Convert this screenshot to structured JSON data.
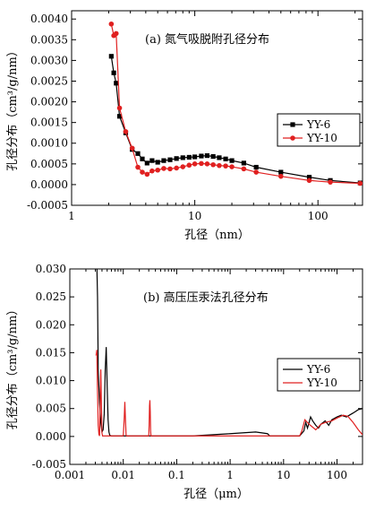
{
  "colors": {
    "yy6": "#000000",
    "yy10": "#e02020",
    "axis": "#000000"
  },
  "chart_data": [
    {
      "type": "line",
      "title": "(a) 氮气吸脱附孔径分布",
      "xlabel": "孔径（nm）",
      "ylabel": "孔径分布（cm³/g/nm）",
      "xscale": "log",
      "xlim": [
        1,
        230
      ],
      "ylim": [
        -0.0005,
        0.0042
      ],
      "xticks": [
        1,
        10,
        100
      ],
      "xtick_labels": [
        "1",
        "10",
        "100"
      ],
      "yticks": [
        -0.0005,
        0,
        0.0005,
        0.001,
        0.0015,
        0.002,
        0.0025,
        0.003,
        0.0035,
        0.004
      ],
      "ytick_labels": [
        "-0.0005",
        "0.0000",
        "0.0005",
        "0.0010",
        "0.0015",
        "0.0020",
        "0.0025",
        "0.0030",
        "0.0035",
        "0.0040"
      ],
      "legend_position": "right",
      "series": [
        {
          "name": "YY-6",
          "marker": "square",
          "color": "#000000",
          "x": [
            2.1,
            2.2,
            2.3,
            2.45,
            2.75,
            3.1,
            3.45,
            3.75,
            4.1,
            4.5,
            5.0,
            5.6,
            6.3,
            7.1,
            8.0,
            9.0,
            10.0,
            11.3,
            12.6,
            14.1,
            15.8,
            17.8,
            20.0,
            25.0,
            31.5,
            50.0,
            85.0,
            126.0,
            220.0
          ],
          "y": [
            0.0031,
            0.0027,
            0.00245,
            0.00165,
            0.00125,
            0.00085,
            0.00075,
            0.00062,
            0.00052,
            0.00058,
            0.00054,
            0.00058,
            0.0006,
            0.00063,
            0.00065,
            0.00066,
            0.00067,
            0.00069,
            0.0007,
            0.00068,
            0.00065,
            0.00062,
            0.00058,
            0.00052,
            0.00042,
            0.0003,
            0.00018,
            0.0001,
            4e-05
          ]
        },
        {
          "name": "YY-10",
          "marker": "circle",
          "color": "#e02020",
          "x": [
            2.1,
            2.2,
            2.3,
            2.45,
            2.75,
            3.1,
            3.45,
            3.75,
            4.1,
            4.5,
            5.0,
            5.6,
            6.3,
            7.1,
            8.0,
            9.0,
            10.0,
            11.3,
            12.6,
            14.1,
            15.8,
            17.8,
            20.0,
            25.0,
            31.5,
            50.0,
            85.0,
            126.0,
            220.0
          ],
          "y": [
            0.00388,
            0.0036,
            0.00365,
            0.00185,
            0.00128,
            0.00088,
            0.00042,
            0.0003,
            0.00025,
            0.00033,
            0.00035,
            0.00039,
            0.00038,
            0.0004,
            0.00043,
            0.00047,
            0.0005,
            0.00051,
            0.0005,
            0.00048,
            0.00046,
            0.00045,
            0.00043,
            0.00038,
            0.0003,
            0.0002,
            0.0001,
            6e-05,
            3e-05
          ]
        }
      ]
    },
    {
      "type": "line",
      "title": "(b) 高压压汞法孔径分布",
      "xlabel": "孔径（μm）",
      "ylabel": "孔径分布（cm³/g/nm）",
      "xscale": "log",
      "xlim": [
        0.001,
        300
      ],
      "ylim": [
        -0.005,
        0.03
      ],
      "xticks": [
        0.001,
        0.01,
        0.1,
        1,
        10,
        100
      ],
      "xtick_labels": [
        "0.001",
        "0.01",
        "0.1",
        "1",
        "10",
        "100"
      ],
      "yticks": [
        -0.005,
        0,
        0.005,
        0.01,
        0.015,
        0.02,
        0.025,
        0.03
      ],
      "ytick_labels": [
        "-0.005",
        "0.000",
        "0.005",
        "0.010",
        "0.015",
        "0.020",
        "0.025",
        "0.030"
      ],
      "legend_position": "right",
      "series": [
        {
          "name": "YY-6",
          "color": "#000000",
          "x": [
            0.0032,
            0.0033,
            0.0034,
            0.0036,
            0.0038,
            0.004,
            0.0042,
            0.0044,
            0.0046,
            0.0048,
            0.005,
            0.0052,
            0.0054,
            0.0056,
            0.006,
            0.05,
            0.2,
            1.0,
            3.0,
            5.0,
            5.5,
            10,
            20,
            24,
            26,
            28,
            30,
            32,
            35,
            40,
            45,
            50,
            60,
            70,
            80,
            100,
            120,
            150,
            200,
            250,
            300
          ],
          "y": [
            0.031,
            0.025,
            0.012,
            0.006,
            0.0025,
            0.0008,
            0.0012,
            0.004,
            0.012,
            0.016,
            0.009,
            0.003,
            0.0008,
            0.0002,
            0.0001,
            0.0001,
            0.0001,
            0.0005,
            0.0008,
            0.0005,
            0.0001,
            0.0001,
            0.0001,
            0.001,
            0.0025,
            0.0015,
            0.0025,
            0.0035,
            0.0028,
            0.002,
            0.0015,
            0.0022,
            0.0028,
            0.002,
            0.003,
            0.0035,
            0.0038,
            0.0035,
            0.0042,
            0.0048,
            0.005
          ]
        },
        {
          "name": "YY-10",
          "color": "#e02020",
          "x": [
            0.0031,
            0.0032,
            0.0033,
            0.0034,
            0.0035,
            0.0036,
            0.0037,
            0.0038,
            0.0039,
            0.004,
            0.0041,
            0.0042,
            0.0043,
            0.0044,
            0.0046,
            0.01,
            0.0104,
            0.0107,
            0.011,
            0.0113,
            0.0116,
            0.03,
            0.0305,
            0.031,
            0.0315,
            0.032,
            0.0325,
            0.033,
            1.0,
            20,
            22,
            25,
            30,
            40,
            50,
            60,
            80,
            100,
            130,
            160,
            200,
            250,
            300
          ],
          "y": [
            0.0145,
            0.0155,
            0.008,
            0.002,
            0.0004,
            0.0001,
            0.006,
            0.012,
            0.006,
            0.0006,
            0.0001,
            0.0001,
            0.0001,
            0.0001,
            0.0001,
            0.0001,
            0.003,
            0.0062,
            0.003,
            0.0002,
            0.0001,
            0.0001,
            0.002,
            0.0055,
            0.0065,
            0.0045,
            0.001,
            0.0001,
            0.0001,
            0.0001,
            0.001,
            0.003,
            0.0022,
            0.0012,
            0.0022,
            0.0025,
            0.0028,
            0.0033,
            0.0038,
            0.0036,
            0.0025,
            0.0012,
            0.0003
          ]
        }
      ]
    }
  ]
}
